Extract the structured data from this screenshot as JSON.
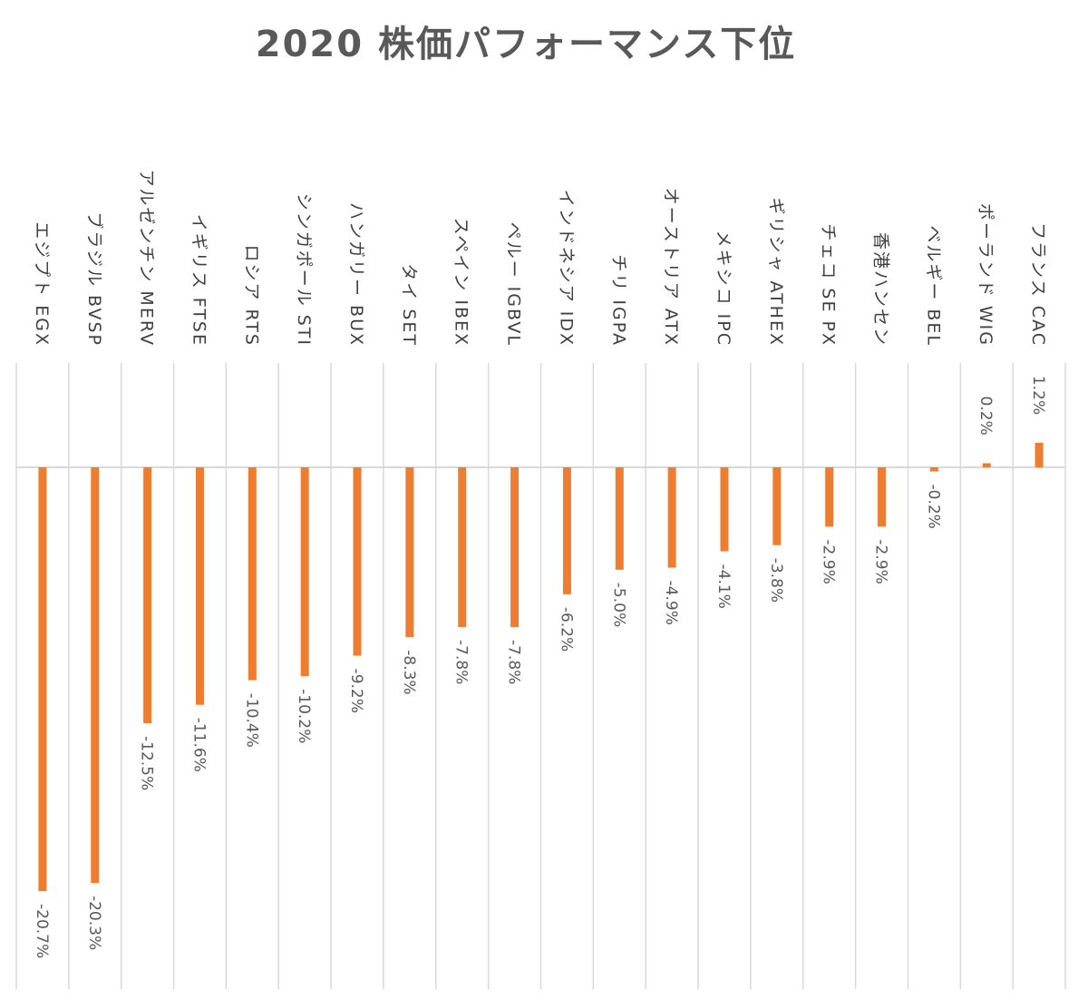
{
  "chart_data": {
    "type": "bar",
    "title": "2020 株価パフォーマンス下位",
    "categories": [
      "エジプト EGX",
      "ブラジル BVSP",
      "アルゼンチン MERV",
      "イギリス FTSE",
      "ロシア RTS",
      "シンガポール STI",
      "ハンガリー BUX",
      "タイ SET",
      "スペイン IBEX",
      "ペルー IGBVL",
      "インドネシア IDX",
      "チリ IGPA",
      "オーストリア ATX",
      "メキシコ IPC",
      "ギリシャ ATHEX",
      "チェコ SE PX",
      "香港ハンセン",
      "ベルギー BEL",
      "ポーランド WIG",
      "フランス CAC"
    ],
    "values": [
      -20.7,
      -20.3,
      -12.5,
      -11.6,
      -10.4,
      -10.2,
      -9.2,
      -8.3,
      -7.8,
      -7.8,
      -6.2,
      -5.0,
      -4.9,
      -4.1,
      -3.8,
      -2.9,
      -2.9,
      -0.2,
      0.2,
      1.2
    ],
    "value_labels": [
      "-20.7%",
      "-20.3%",
      "-12.5%",
      "-11.6%",
      "-10.4%",
      "-10.2%",
      "-9.2%",
      "-8.3%",
      "-7.8%",
      "-7.8%",
      "-6.2%",
      "-5.0%",
      "-4.9%",
      "-4.1%",
      "-3.8%",
      "-2.9%",
      "-2.9%",
      "-0.2%",
      "0.2%",
      "1.2%"
    ],
    "ylim": [
      -25,
      5
    ],
    "grid": true,
    "legend": "none",
    "bar_color": "#ED7D31"
  }
}
